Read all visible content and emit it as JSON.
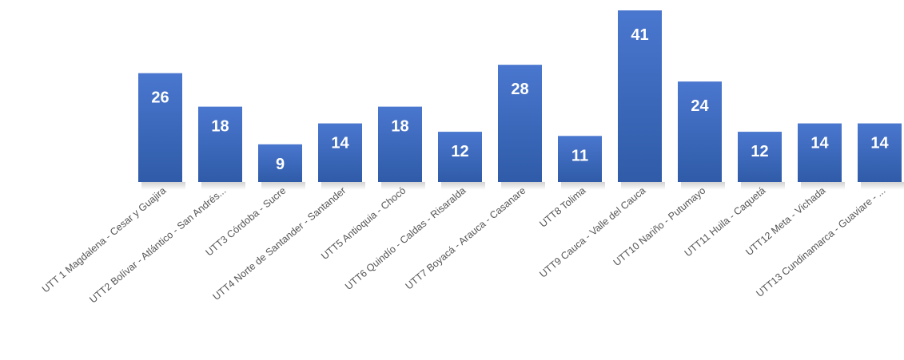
{
  "chart_data": {
    "type": "bar",
    "title": "",
    "xlabel": "",
    "ylabel": "",
    "categories": [
      "UTT 1 Magdalena - Cesar y Guajira",
      "UTT2 Bolívar - Atlántico - San Andrés...",
      "UTT3 Córdoba - Sucre",
      "UTT4 Norte de Santander - Santander",
      "UTT5 Antioquia - Chocó",
      "UTT6 Quindío - Caldas - Risaralda",
      "UTT7 Boyacá - Arauca - Casanare",
      "UTT8 Tolima",
      "UTT9 Cauca - Valle del Cauca",
      "UTT10 Nariño - Putumayo",
      "UTT11 Huila - Caquetá",
      "UTT12 Meta - Vichada",
      "UTT13 Cundinamarca - Guaviare - ..."
    ],
    "values": [
      26,
      18,
      9,
      14,
      18,
      12,
      28,
      11,
      41,
      24,
      12,
      14,
      14
    ],
    "value_labels": [
      "26",
      "18",
      "9",
      "14",
      "18",
      "12",
      "28",
      "11",
      "41",
      "24",
      "12",
      "14",
      "14"
    ],
    "ylim": [
      0,
      41
    ],
    "grid": false,
    "colors": {
      "bar_top": "#4a77cf",
      "bar_bottom": "#2f5ba8",
      "label": "#ffffff",
      "category_text": "#555555"
    }
  }
}
